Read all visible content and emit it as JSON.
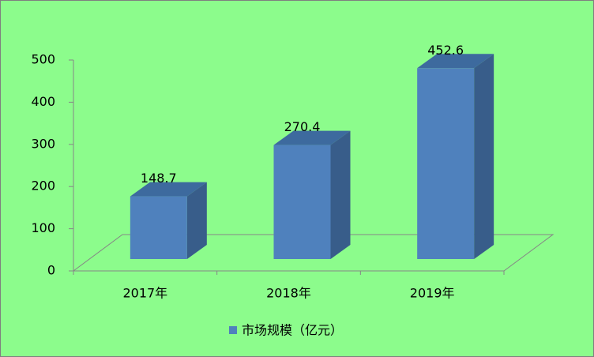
{
  "chart_data": {
    "type": "bar3d",
    "categories": [
      "2017年",
      "2018年",
      "2019年"
    ],
    "values": [
      148.7,
      270.4,
      452.6
    ],
    "series_name": "市场规模（亿元）",
    "color": "#4f81bd",
    "ylim": [
      0,
      500
    ],
    "yticks": [
      0,
      100,
      200,
      300,
      400,
      500
    ],
    "legend": "bottom"
  }
}
